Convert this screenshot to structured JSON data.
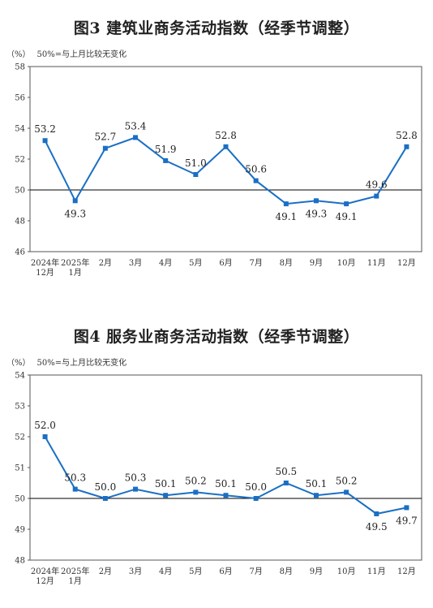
{
  "charts": [
    {
      "title": "图3  建筑业商务活动指数（经季节调整）",
      "unit": "（%）",
      "note": "50%=与上月比较无变化",
      "chart_data": {
        "type": "line",
        "title": "图3  建筑业商务活动指数（经季节调整）",
        "ylabel": "（%）",
        "categories": [
          [
            "2024年",
            "12月"
          ],
          [
            "2025年",
            "1月"
          ],
          [
            "2月"
          ],
          [
            "3月"
          ],
          [
            "4月"
          ],
          [
            "5月"
          ],
          [
            "6月"
          ],
          [
            "7月"
          ],
          [
            "8月"
          ],
          [
            "9月"
          ],
          [
            "10月"
          ],
          [
            "11月"
          ],
          [
            "12月"
          ]
        ],
        "values": [
          53.2,
          49.3,
          52.7,
          53.4,
          51.9,
          51.0,
          52.8,
          50.6,
          49.1,
          49.3,
          49.1,
          49.6,
          52.8
        ],
        "labels": [
          "53.2",
          "49.3",
          "52.7",
          "53.4",
          "51.9",
          "51.0",
          "52.8",
          "50.6",
          "49.1",
          "49.3",
          "49.1",
          "49.6",
          "52.8"
        ],
        "label_pos": [
          "above",
          "below",
          "above",
          "above",
          "above",
          "above",
          "above",
          "above",
          "below",
          "below",
          "below",
          "above",
          "above"
        ],
        "ylim": [
          46,
          58
        ],
        "yticks": [
          "46",
          "48",
          "50",
          "52",
          "54",
          "56",
          "58"
        ],
        "baseline": 50,
        "line_color": "#1a6fc4",
        "grid": false
      }
    },
    {
      "title": "图4  服务业商务活动指数（经季节调整）",
      "unit": "（%）",
      "note": "50%=与上月比较无变化",
      "chart_data": {
        "type": "line",
        "title": "图4  服务业商务活动指数（经季节调整）",
        "ylabel": "（%）",
        "categories": [
          [
            "2024年",
            "12月"
          ],
          [
            "2025年",
            "1月"
          ],
          [
            "2月"
          ],
          [
            "3月"
          ],
          [
            "4月"
          ],
          [
            "5月"
          ],
          [
            "6月"
          ],
          [
            "7月"
          ],
          [
            "8月"
          ],
          [
            "9月"
          ],
          [
            "10月"
          ],
          [
            "11月"
          ],
          [
            "12月"
          ]
        ],
        "values": [
          52.0,
          50.3,
          50.0,
          50.3,
          50.1,
          50.2,
          50.1,
          50.0,
          50.5,
          50.1,
          50.2,
          49.5,
          49.7
        ],
        "labels": [
          "52.0",
          "50.3",
          "50.0",
          "50.3",
          "50.1",
          "50.2",
          "50.1",
          "50.0",
          "50.5",
          "50.1",
          "50.2",
          "49.5",
          "49.7"
        ],
        "label_pos": [
          "above",
          "above",
          "above",
          "above",
          "above",
          "above",
          "above",
          "above",
          "above",
          "above",
          "above",
          "below",
          "below"
        ],
        "ylim": [
          48,
          54
        ],
        "yticks": [
          "48",
          "49",
          "50",
          "51",
          "52",
          "53",
          "54"
        ],
        "baseline": 50,
        "line_color": "#1a6fc4",
        "grid": false
      }
    }
  ]
}
